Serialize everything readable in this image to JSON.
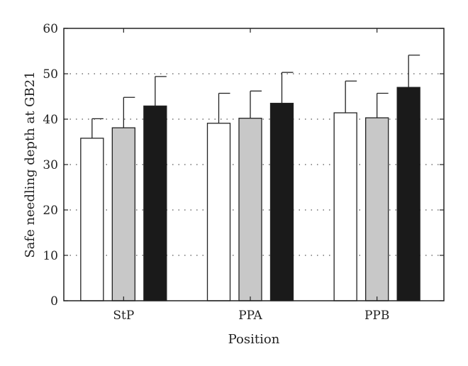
{
  "chart_data": {
    "type": "bar",
    "title": "",
    "xlabel": "Position",
    "ylabel": "Safe needling depth at GB21",
    "categories": [
      "StP",
      "PPA",
      "PPB"
    ],
    "ylim": [
      0,
      60
    ],
    "yticks": [
      0,
      10,
      20,
      30,
      40,
      50,
      60
    ],
    "grid": "dotted horizontal at 10, 20, 30, 40, 50",
    "legend": "none",
    "series": [
      {
        "color": "#ffffff",
        "values": [
          35.8,
          39.1,
          41.4
        ],
        "errors": [
          4.3,
          6.6,
          7.0
        ]
      },
      {
        "color": "#c8c8c8",
        "values": [
          38.1,
          40.2,
          40.3
        ],
        "errors": [
          6.7,
          6.0,
          5.4
        ]
      },
      {
        "color": "#1a1a1a",
        "values": [
          42.9,
          43.5,
          47.0
        ],
        "errors": [
          6.5,
          6.8,
          7.1
        ]
      }
    ]
  }
}
